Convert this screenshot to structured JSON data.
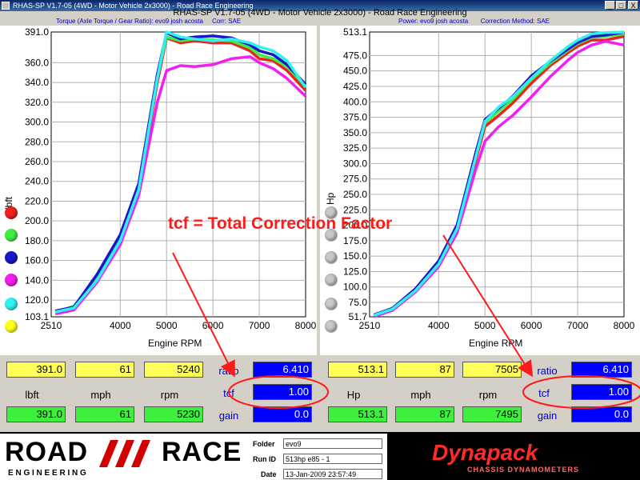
{
  "window": {
    "title": "RHAS-SP V1.7-05 (4WD - Motor Vehicle 2x3000) - Road Race Engineering",
    "run_title": "RHAS-SP V1.7-05   (4WD - Motor Vehicle 2x3000) - Road Race Engineering",
    "close_label": "X",
    "min_label": "_",
    "max_label": "□"
  },
  "left_header": {
    "title": "Torque (Axle Torque / Gear Ratio): evo9 josh acosta",
    "corr": "Corr: SAE"
  },
  "right_header": {
    "title": "Power: evo9 josh acosta",
    "corr": "Correction Method: SAE"
  },
  "annotation": "tcf = Total Correction Factor",
  "colors": {
    "run1": "#ee2020",
    "run2": "#40ee40",
    "run3": "#1818c8",
    "run4": "#f020f0",
    "run5": "#30f0f0",
    "run6": "#ffff20",
    "annotation": "#ff1a1a"
  },
  "chart_data": [
    {
      "type": "line",
      "xlabel": "Engine RPM",
      "ylabel": "lbft",
      "xlim": [
        2510,
        8000
      ],
      "ylim": [
        103.1,
        391.0
      ],
      "x_ticks": [
        "2510",
        "4000",
        "5000",
        "6000",
        "7000",
        "8000"
      ],
      "y_ticks": [
        "391.0",
        "360.0",
        "340.0",
        "320.0",
        "300.0",
        "280.0",
        "260.0",
        "240.0",
        "220.0",
        "200.0",
        "180.0",
        "160.0",
        "140.0",
        "120.0",
        "103.1"
      ],
      "grid": true,
      "series": [
        {
          "color": "#ee2020",
          "x": [
            2600,
            3000,
            3500,
            4000,
            4400,
            4800,
            5000,
            5300,
            5600,
            6000,
            6400,
            6800,
            7000,
            7300,
            7600,
            8000
          ],
          "values": [
            108,
            110,
            138,
            178,
            230,
            340,
            385,
            380,
            382,
            380,
            380,
            372,
            364,
            362,
            352,
            332
          ]
        },
        {
          "color": "#40ee40",
          "x": [
            2600,
            3000,
            3500,
            4000,
            4400,
            4800,
            5000,
            5300,
            5600,
            6000,
            6400,
            6800,
            7000,
            7300,
            7600,
            8000
          ],
          "values": [
            107,
            114,
            142,
            182,
            235,
            345,
            386,
            382,
            384,
            383,
            382,
            375,
            368,
            364,
            356,
            336
          ]
        },
        {
          "color": "#1818c8",
          "x": [
            2600,
            3000,
            3500,
            4000,
            4400,
            4800,
            5000,
            5300,
            5600,
            6000,
            6400,
            6800,
            7000,
            7300,
            7600,
            8000
          ],
          "values": [
            109,
            113,
            146,
            186,
            238,
            348,
            390,
            384,
            386,
            387,
            385,
            378,
            372,
            368,
            358,
            338
          ]
        },
        {
          "color": "#f020f0",
          "x": [
            2600,
            3000,
            3500,
            4000,
            4400,
            4800,
            5000,
            5300,
            5600,
            6000,
            6400,
            6800,
            7000,
            7300,
            7600,
            8000
          ],
          "values": [
            106,
            110,
            138,
            176,
            226,
            320,
            352,
            357,
            356,
            358,
            364,
            366,
            360,
            354,
            344,
            326
          ]
        },
        {
          "color": "#30f0f0",
          "x": [
            2600,
            3000,
            3500,
            4000,
            4400,
            4800,
            5000,
            5300,
            5600,
            6000,
            6400,
            6800,
            7000,
            7300,
            7600,
            8000
          ],
          "values": [
            108,
            112,
            140,
            180,
            232,
            344,
            391,
            386,
            384,
            382,
            384,
            380,
            376,
            372,
            362,
            335
          ]
        }
      ]
    },
    {
      "type": "line",
      "xlabel": "Engine RPM",
      "ylabel": "Hp",
      "xlim": [
        2510,
        8000
      ],
      "ylim": [
        51.7,
        513.1
      ],
      "x_ticks": [
        "2510",
        "4000",
        "5000",
        "6000",
        "7000",
        "8000"
      ],
      "y_ticks": [
        "513.1",
        "475.0",
        "450.0",
        "425.0",
        "400.0",
        "375.0",
        "350.0",
        "325.0",
        "300.0",
        "275.0",
        "250.0",
        "225.0",
        "200.0",
        "175.0",
        "150.0",
        "125.0",
        "100.0",
        "75.0",
        "51.7"
      ],
      "grid": true,
      "series": [
        {
          "color": "#ee2020",
          "x": [
            2600,
            3000,
            3500,
            4000,
            4400,
            4800,
            5000,
            5300,
            5600,
            6000,
            6400,
            6800,
            7000,
            7300,
            7600,
            8000
          ],
          "values": [
            54,
            62,
            92,
            135,
            192,
            305,
            360,
            378,
            398,
            430,
            458,
            480,
            490,
            500,
            500,
            506
          ]
        },
        {
          "color": "#40ee40",
          "x": [
            2600,
            3000,
            3500,
            4000,
            4400,
            4800,
            5000,
            5300,
            5600,
            6000,
            6400,
            6800,
            7000,
            7300,
            7600,
            8000
          ],
          "values": [
            53,
            66,
            95,
            139,
            197,
            312,
            366,
            385,
            404,
            436,
            462,
            484,
            494,
            504,
            506,
            510
          ]
        },
        {
          "color": "#1818c8",
          "x": [
            2600,
            3000,
            3500,
            4000,
            4400,
            4800,
            5000,
            5300,
            5600,
            6000,
            6400,
            6800,
            7000,
            7300,
            7600,
            8000
          ],
          "values": [
            55,
            65,
            97,
            142,
            201,
            317,
            371,
            390,
            409,
            442,
            465,
            486,
            496,
            506,
            508,
            513
          ]
        },
        {
          "color": "#f020f0",
          "x": [
            2600,
            3000,
            3500,
            4000,
            4400,
            4800,
            5000,
            5300,
            5600,
            6000,
            6400,
            6800,
            7000,
            7300,
            7600,
            8000
          ],
          "values": [
            52,
            62,
            92,
            133,
            188,
            290,
            336,
            360,
            378,
            408,
            440,
            468,
            480,
            492,
            498,
            492
          ]
        },
        {
          "color": "#30f0f0",
          "x": [
            2600,
            3000,
            3500,
            4000,
            4400,
            4800,
            5000,
            5300,
            5600,
            6000,
            6400,
            6800,
            7000,
            7300,
            7600,
            8000
          ],
          "values": [
            54,
            64,
            94,
            137,
            195,
            310,
            368,
            392,
            408,
            438,
            466,
            490,
            500,
            510,
            512,
            513
          ]
        }
      ]
    }
  ],
  "left_readout": {
    "top": [
      "391.0",
      "61",
      "5240"
    ],
    "labels": [
      "lbft",
      "mph",
      "rpm"
    ],
    "bottom": [
      "391.0",
      "61",
      "5230"
    ],
    "ratio_label": "ratio",
    "ratio_value": "6.410",
    "tcf_label": "tcf",
    "tcf_value": "1.00",
    "gain_label": "gain",
    "gain_value": "0.0"
  },
  "right_readout": {
    "top": [
      "513.1",
      "87",
      "7505"
    ],
    "labels": [
      "Hp",
      "mph",
      "rpm"
    ],
    "bottom": [
      "513.1",
      "87",
      "7495"
    ],
    "ratio_label": "ratio",
    "ratio_value": "6.410",
    "tcf_label": "tcf",
    "tcf_value": "1.00",
    "gain_label": "gain",
    "gain_value": "0.0"
  },
  "footer": {
    "logo_word1": "ROAD",
    "logo_word2": "RACE",
    "logo_sub": "E N G I N E E R I N G",
    "folder_label": "Folder",
    "folder_value": "evo9",
    "runid_label": "Run ID",
    "runid_value": "513hp e85 - 1",
    "date_label": "Date",
    "date_value": "13-Jan-2009  23:57:49",
    "dynapack_name": "Dynapack",
    "dynapack_sub": "CHASSIS DYNAMOMETERS"
  }
}
